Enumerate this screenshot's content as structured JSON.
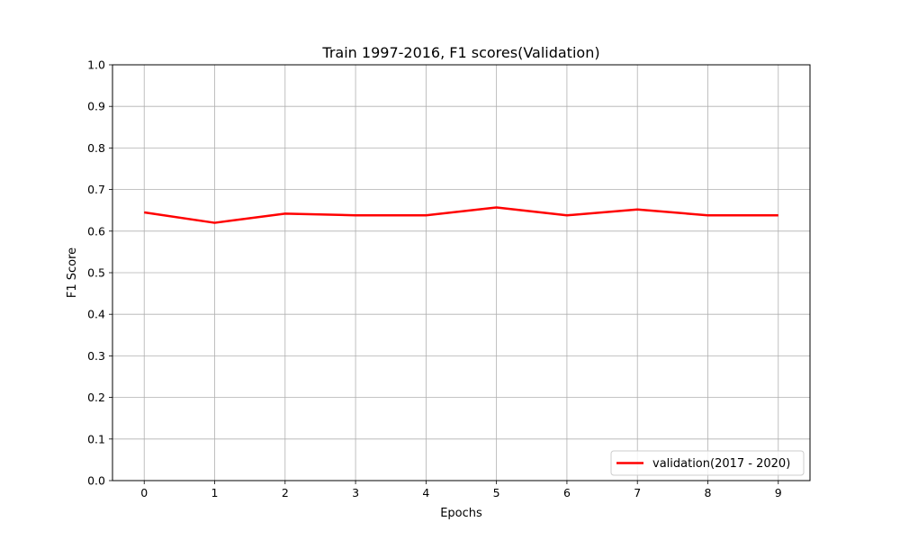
{
  "chart_data": {
    "type": "line",
    "title": "Train 1997-2016, F1 scores(Validation)",
    "xlabel": "Epochs",
    "ylabel": "F1 Score",
    "x": [
      0,
      1,
      2,
      3,
      4,
      5,
      6,
      7,
      8,
      9
    ],
    "xlim": [
      -0.45,
      9.45
    ],
    "ylim": [
      0.0,
      1.0
    ],
    "xticks": [
      0,
      1,
      2,
      3,
      4,
      5,
      6,
      7,
      8,
      9
    ],
    "yticks": [
      0.0,
      0.1,
      0.2,
      0.3,
      0.4,
      0.5,
      0.6,
      0.7,
      0.8,
      0.9,
      1.0
    ],
    "xtick_labels": [
      "0",
      "1",
      "2",
      "3",
      "4",
      "5",
      "6",
      "7",
      "8",
      "9"
    ],
    "ytick_labels": [
      "0.0",
      "0.1",
      "0.2",
      "0.3",
      "0.4",
      "0.5",
      "0.6",
      "0.7",
      "0.8",
      "0.9",
      "1.0"
    ],
    "grid": true,
    "legend_position": "bottom-right",
    "series": [
      {
        "name": "validation(2017 - 2020)",
        "color": "#ff0000",
        "values": [
          0.645,
          0.62,
          0.642,
          0.638,
          0.638,
          0.657,
          0.638,
          0.652,
          0.638,
          0.638
        ]
      }
    ]
  }
}
